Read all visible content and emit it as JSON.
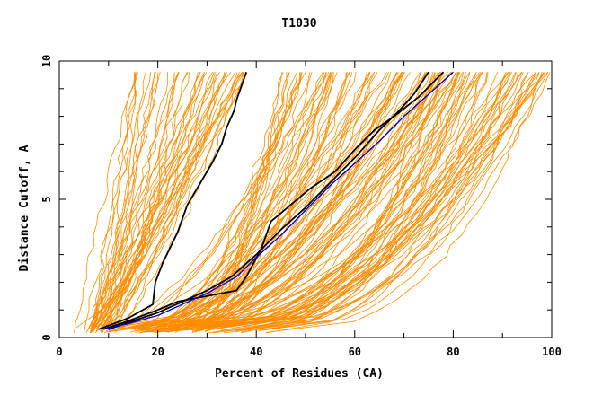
{
  "chart_data": {
    "type": "line",
    "title": "T1030",
    "xlabel": "Percent of Residues (CA)",
    "ylabel": "Distance Cutoff, A",
    "xlim": [
      0,
      100
    ],
    "ylim": [
      0,
      10
    ],
    "xticks": [
      "0",
      "20",
      "40",
      "60",
      "80",
      "100"
    ],
    "yticks": [
      "0",
      "5",
      "10"
    ],
    "grid": false,
    "colors": {
      "background_series": "#ff8c00",
      "highlight": "#000000",
      "reference": "#0000cd",
      "frame": "#000000"
    },
    "highlight_series": [
      {
        "x": [
          8,
          14,
          19,
          19.5,
          21,
          24,
          26,
          29,
          31,
          33,
          34,
          35.5,
          36,
          37,
          38
        ],
        "y": [
          0.3,
          0.7,
          1.2,
          2.0,
          2.7,
          3.8,
          4.8,
          5.7,
          6.3,
          7.0,
          7.6,
          8.2,
          8.6,
          9.1,
          9.6
        ]
      },
      {
        "x": [
          9,
          14,
          20,
          24,
          30,
          36,
          38,
          41,
          43,
          47,
          51,
          56,
          60,
          64,
          68,
          73,
          78
        ],
        "y": [
          0.3,
          0.6,
          1.0,
          1.3,
          1.5,
          1.7,
          2.2,
          3.2,
          4.2,
          4.8,
          5.4,
          6.0,
          6.8,
          7.5,
          8.0,
          8.7,
          9.6
        ]
      },
      {
        "x": [
          10,
          15,
          20,
          25,
          30,
          35,
          40,
          45,
          50,
          55,
          60,
          65,
          69,
          72,
          75
        ],
        "y": [
          0.3,
          0.6,
          0.9,
          1.3,
          1.7,
          2.2,
          3.0,
          3.9,
          4.7,
          5.6,
          6.5,
          7.5,
          8.2,
          8.8,
          9.6
        ]
      }
    ],
    "reference_series": {
      "x": [
        9,
        14,
        20,
        25,
        30,
        36,
        40,
        45,
        50,
        55,
        60,
        65,
        70,
        75,
        80
      ],
      "y": [
        0.3,
        0.5,
        0.8,
        1.2,
        1.6,
        2.2,
        2.9,
        3.7,
        4.6,
        5.5,
        6.3,
        7.1,
        8.0,
        8.8,
        9.6
      ]
    },
    "background_bands": [
      {
        "count": 45,
        "x0": [
          3,
          12
        ],
        "xTop": [
          15,
          38
        ],
        "curve": 1.2
      },
      {
        "count": 70,
        "x0": [
          8,
          30
        ],
        "xTop": [
          45,
          82
        ],
        "curve": 1.8
      },
      {
        "count": 55,
        "x0": [
          14,
          42
        ],
        "xTop": [
          75,
          100
        ],
        "curve": 2.4
      }
    ]
  }
}
